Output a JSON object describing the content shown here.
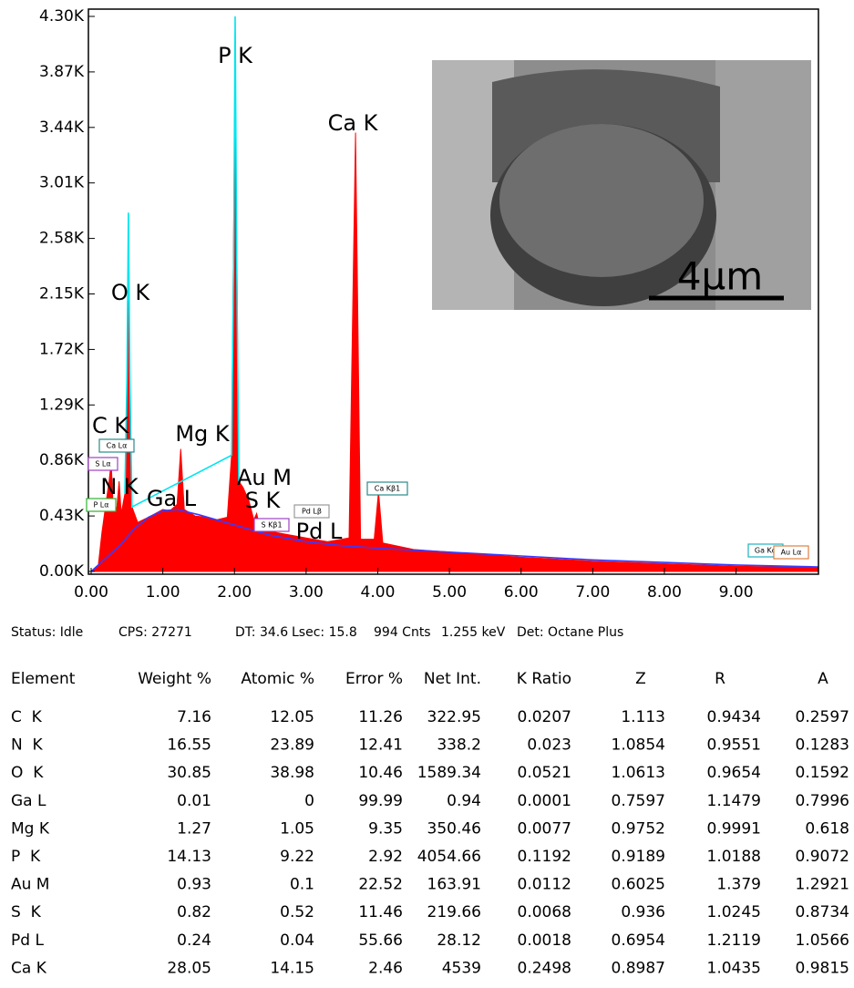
{
  "chart_data": {
    "type": "spectrum",
    "xlim": [
      0,
      10.15
    ],
    "xticks": [
      {
        "value": 0,
        "label": "0.00"
      },
      {
        "value": 1,
        "label": "1.00"
      },
      {
        "value": 2,
        "label": "2.00"
      },
      {
        "value": 3,
        "label": "3.00"
      },
      {
        "value": 4,
        "label": "4.00"
      },
      {
        "value": 5,
        "label": "5.00"
      },
      {
        "value": 6,
        "label": "6.00"
      },
      {
        "value": 7,
        "label": "7.00"
      },
      {
        "value": 8,
        "label": "8.00"
      },
      {
        "value": 9,
        "label": "9.00"
      }
    ],
    "ylim": [
      0,
      4300
    ],
    "yticks": [
      {
        "value": 0,
        "label": "0.00K"
      },
      {
        "value": 430,
        "label": "0.43K"
      },
      {
        "value": 860,
        "label": "0.86K"
      },
      {
        "value": 1290,
        "label": "1.29K"
      },
      {
        "value": 1720,
        "label": "1.72K"
      },
      {
        "value": 2150,
        "label": "2.15K"
      },
      {
        "value": 2580,
        "label": "2.58K"
      },
      {
        "value": 3010,
        "label": "3.01K"
      },
      {
        "value": 3440,
        "label": "3.44K"
      },
      {
        "value": 3870,
        "label": "3.87K"
      },
      {
        "value": 4300,
        "label": "4.30K"
      }
    ],
    "series": [
      {
        "color": "#ff0000",
        "fill": true,
        "x": [
          0,
          0.1,
          0.15,
          0.2,
          0.25,
          0.28,
          0.31,
          0.36,
          0.39,
          0.42,
          0.47,
          0.52,
          0.57,
          0.65,
          0.8,
          1.0,
          1.1,
          1.2,
          1.25,
          1.3,
          1.45,
          1.6,
          1.75,
          1.9,
          1.96,
          2.01,
          2.06,
          2.12,
          2.2,
          2.27,
          2.31,
          2.36,
          2.6,
          3.0,
          3.3,
          3.6,
          3.69,
          3.76,
          3.95,
          4.01,
          4.07,
          4.5,
          5.0,
          6.0,
          7.0,
          8.0,
          9.0,
          10.15
        ],
        "values": [
          0,
          50,
          300,
          500,
          700,
          850,
          450,
          500,
          700,
          450,
          600,
          2100,
          500,
          380,
          420,
          480,
          470,
          520,
          950,
          480,
          430,
          420,
          400,
          420,
          900,
          3900,
          700,
          650,
          550,
          400,
          450,
          330,
          300,
          260,
          230,
          260,
          3400,
          250,
          250,
          620,
          220,
          170,
          150,
          110,
          80,
          60,
          40,
          30
        ]
      },
      {
        "color": "#00e5ee",
        "fill": false,
        "x": [
          0.47,
          0.5,
          0.52,
          0.54,
          0.57,
          1.96,
          1.99,
          2.01,
          2.03,
          2.06
        ],
        "values": [
          600,
          1500,
          2780,
          1500,
          500,
          900,
          2500,
          4300,
          2500,
          700
        ]
      },
      {
        "color": "#3a3aff",
        "fill": false,
        "x": [
          0,
          0.2,
          0.4,
          0.6,
          0.8,
          1.0,
          1.2,
          1.5,
          2.0,
          2.5,
          3.0,
          3.5,
          4.0,
          5.0,
          6.0,
          7.0,
          8.0,
          9.0,
          10.15
        ],
        "values": [
          0,
          100,
          200,
          330,
          420,
          470,
          480,
          440,
          360,
          280,
          230,
          200,
          180,
          150,
          120,
          90,
          70,
          50,
          35
        ]
      }
    ],
    "peak_labels": [
      "P K",
      "Ca K",
      "O K",
      "C K",
      "Mg K",
      "N K",
      "Ga L",
      "Au M",
      "S K",
      "Pd L"
    ],
    "line_labels": [
      {
        "text": "Ca Lα",
        "color": "#2a8a8a"
      },
      {
        "text": "S Lα",
        "color": "#a040c0"
      },
      {
        "text": "P Lα",
        "color": "#30b030"
      },
      {
        "text": "Ca Kβ1",
        "color": "#2a8a8a"
      },
      {
        "text": "S Kβ1",
        "color": "#a040c0"
      },
      {
        "text": "Pd Lβ",
        "color": "#999999"
      },
      {
        "text": "Ga Kα",
        "color": "#20b0c0"
      },
      {
        "text": "Au Lα",
        "color": "#e08040"
      }
    ],
    "inset": {
      "scale_bar": "4µm"
    }
  },
  "status": [
    "Status: Idle",
    "CPS: 27271",
    "DT: 34.6",
    "Lsec: 15.8",
    "994 Cnts",
    "1.255 keV",
    "Det: Octane Plus"
  ],
  "table": {
    "header": [
      "Element",
      "Weight %",
      "Atomic %",
      "Error %",
      "Net Int.",
      "K Ratio",
      "Z",
      "R",
      "A"
    ],
    "rows": [
      [
        "C  K",
        7.16,
        12.05,
        11.26,
        322.95,
        0.0207,
        1.113,
        0.9434,
        0.2597
      ],
      [
        "N  K",
        16.55,
        23.89,
        12.41,
        338.2,
        0.023,
        1.0854,
        0.9551,
        0.1283
      ],
      [
        "O  K",
        30.85,
        38.98,
        10.46,
        1589.34,
        0.0521,
        1.0613,
        0.9654,
        0.1592
      ],
      [
        "Ga L",
        0.01,
        0,
        99.99,
        0.94,
        0.0001,
        0.7597,
        1.1479,
        0.7996
      ],
      [
        "Mg K",
        1.27,
        1.05,
        9.35,
        350.46,
        0.0077,
        0.9752,
        0.9991,
        0.618
      ],
      [
        "P  K",
        14.13,
        9.22,
        2.92,
        4054.66,
        0.1192,
        0.9189,
        1.0188,
        0.9072
      ],
      [
        "Au M",
        0.93,
        0.1,
        22.52,
        163.91,
        0.0112,
        0.6025,
        1.379,
        1.2921
      ],
      [
        "S  K",
        0.82,
        0.52,
        11.46,
        219.66,
        0.0068,
        0.936,
        1.0245,
        0.8734
      ],
      [
        "Pd L",
        0.24,
        0.04,
        55.66,
        28.12,
        0.0018,
        0.6954,
        1.2119,
        1.0566
      ],
      [
        "Ca K",
        28.05,
        14.15,
        2.46,
        4539,
        0.2498,
        0.8987,
        1.0435,
        0.9815
      ]
    ]
  }
}
